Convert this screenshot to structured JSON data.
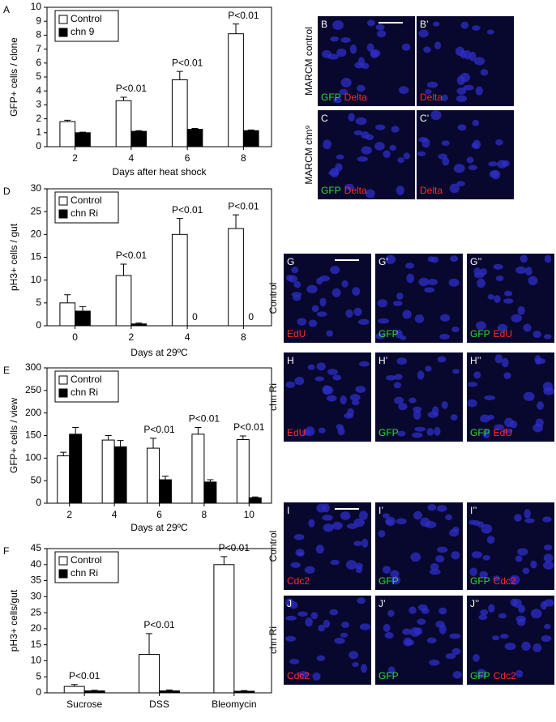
{
  "chart_data": [
    {
      "type": "bar",
      "panel_label": "A",
      "ylabel": "GFP+ cells / clone",
      "xlabel": "Days after heat shock",
      "categories": [
        "2",
        "4",
        "6",
        "8"
      ],
      "series": [
        {
          "name": "Control",
          "color": "#ffffff",
          "values": [
            1.8,
            3.3,
            4.8,
            8.1
          ],
          "errors": [
            0.1,
            0.25,
            0.6,
            0.7
          ]
        },
        {
          "name": "chn 9",
          "color": "#000000",
          "values": [
            1.0,
            1.1,
            1.25,
            1.15
          ],
          "errors": [
            0.04,
            0.05,
            0.06,
            0.05
          ]
        }
      ],
      "ylim": [
        0,
        10
      ],
      "yticks": [
        0,
        1,
        2,
        3,
        4,
        5,
        6,
        7,
        8,
        9,
        10
      ],
      "legend": "upper left",
      "annotations": [
        {
          "category": "4",
          "text": "P<0.01"
        },
        {
          "category": "6",
          "text": "P<0.01"
        },
        {
          "category": "8",
          "text": "P<0.01"
        }
      ]
    },
    {
      "type": "bar",
      "panel_label": "D",
      "ylabel": "pH3+ cells / gut",
      "xlabel": "Days at 29ºC",
      "categories": [
        "0",
        "2",
        "4",
        "8"
      ],
      "series": [
        {
          "name": "Control",
          "color": "#ffffff",
          "values": [
            5,
            11,
            20,
            21.3
          ],
          "errors": [
            1.8,
            2.5,
            3.5,
            3
          ]
        },
        {
          "name": "chn Ri",
          "color": "#000000",
          "values": [
            3.2,
            0.4,
            0,
            0
          ],
          "errors": [
            1,
            0.2,
            0,
            0
          ]
        }
      ],
      "ylim": [
        0,
        30
      ],
      "yticks": [
        0,
        5,
        10,
        15,
        20,
        25,
        30
      ],
      "legend": "upper left",
      "annotations": [
        {
          "category": "2",
          "text": "P<0.01"
        },
        {
          "category": "4",
          "text": "P<0.01"
        },
        {
          "category": "8",
          "text": "P<0.01"
        }
      ]
    },
    {
      "type": "bar",
      "panel_label": "E",
      "ylabel": "GFP+ cells / view",
      "xlabel": "Days at 29ºC",
      "categories": [
        "2",
        "4",
        "6",
        "8",
        "10"
      ],
      "series": [
        {
          "name": "Control",
          "color": "#ffffff",
          "values": [
            105,
            140,
            122,
            153,
            141
          ],
          "errors": [
            8,
            10,
            22,
            15,
            8
          ]
        },
        {
          "name": "chn Ri",
          "color": "#000000",
          "values": [
            153,
            125,
            52,
            47,
            12
          ],
          "errors": [
            15,
            14,
            8,
            5,
            2
          ]
        }
      ],
      "ylim": [
        0,
        300
      ],
      "yticks": [
        0,
        50,
        100,
        150,
        200,
        250,
        300
      ],
      "legend": "upper left",
      "annotations": [
        {
          "category": "6",
          "text": "P<0.01"
        },
        {
          "category": "8",
          "text": "P<0.01"
        },
        {
          "category": "10",
          "text": "P<0.01"
        }
      ]
    },
    {
      "type": "bar",
      "panel_label": "F",
      "ylabel": "pH3+ cells/gut",
      "categories": [
        "Sucrose",
        "DSS",
        "Bleomycin"
      ],
      "series": [
        {
          "name": "Control",
          "color": "#ffffff",
          "values": [
            2,
            12,
            40
          ],
          "errors": [
            0.6,
            6.5,
            2.5
          ]
        },
        {
          "name": "chn Ri",
          "color": "#000000",
          "values": [
            0.6,
            0.6,
            0.5
          ],
          "errors": [
            0.2,
            0.3,
            0.2
          ]
        }
      ],
      "ylim": [
        0,
        45
      ],
      "yticks": [
        0,
        5,
        10,
        15,
        20,
        25,
        30,
        35,
        40,
        45
      ],
      "legend": "upper left",
      "annotations": [
        {
          "category": "Sucrose",
          "text": "P<0.01"
        },
        {
          "category": "DSS",
          "text": "P<0.01"
        },
        {
          "category": "Bleomycin",
          "text": "P<0.01"
        }
      ]
    }
  ],
  "micrographs": [
    {
      "row_labels": [
        "MARCM control",
        "MARCM chn⁹"
      ],
      "rows": [
        [
          {
            "letter": "B",
            "channels": [
              {
                "text": "GFP",
                "color": "#33dd33"
              },
              {
                "text": "Delta",
                "color": "#ff2a2a"
              }
            ]
          },
          {
            "letter": "B’",
            "channels": [
              {
                "text": "Delta",
                "color": "#ff2a2a"
              }
            ]
          }
        ],
        [
          {
            "letter": "C",
            "channels": [
              {
                "text": "GFP",
                "color": "#33dd33"
              },
              {
                "text": "Delta",
                "color": "#ff2a2a"
              }
            ]
          },
          {
            "letter": "C’",
            "channels": [
              {
                "text": "Delta",
                "color": "#ff2a2a"
              }
            ]
          }
        ]
      ]
    },
    {
      "row_labels": [
        "Control",
        "chn Ri"
      ],
      "rows": [
        [
          {
            "letter": "G",
            "channels": [
              {
                "text": "EdU",
                "color": "#ff2a2a"
              }
            ]
          },
          {
            "letter": "G’",
            "channels": [
              {
                "text": "GFP",
                "color": "#33dd33"
              }
            ]
          },
          {
            "letter": "G’’",
            "channels": [
              {
                "text": "GFP",
                "color": "#33dd33"
              },
              {
                "text": "EdU",
                "color": "#ff2a2a"
              }
            ]
          }
        ],
        [
          {
            "letter": "H",
            "channels": [
              {
                "text": "EdU",
                "color": "#ff2a2a"
              }
            ]
          },
          {
            "letter": "H’",
            "channels": [
              {
                "text": "GFP",
                "color": "#33dd33"
              }
            ]
          },
          {
            "letter": "H’’",
            "channels": [
              {
                "text": "GFP",
                "color": "#33dd33"
              },
              {
                "text": "EdU",
                "color": "#ff2a2a"
              }
            ]
          }
        ]
      ]
    },
    {
      "row_labels": [
        "Control",
        "chn Ri"
      ],
      "rows": [
        [
          {
            "letter": "I",
            "channels": [
              {
                "text": "Cdc2",
                "color": "#ff2a2a"
              }
            ]
          },
          {
            "letter": "I’",
            "channels": [
              {
                "text": "GFP",
                "color": "#33dd33"
              }
            ]
          },
          {
            "letter": "I’’",
            "channels": [
              {
                "text": "GFP",
                "color": "#33dd33"
              },
              {
                "text": "Cdc2",
                "color": "#ff2a2a"
              }
            ]
          }
        ],
        [
          {
            "letter": "J",
            "channels": [
              {
                "text": "Cdc2",
                "color": "#ff2a2a"
              }
            ]
          },
          {
            "letter": "J’",
            "channels": [
              {
                "text": "GFP",
                "color": "#33dd33"
              }
            ]
          },
          {
            "letter": "J’’",
            "channels": [
              {
                "text": "GFP",
                "color": "#33dd33"
              },
              {
                "text": "Cdc2",
                "color": "#ff2a2a"
              }
            ]
          }
        ]
      ]
    }
  ]
}
